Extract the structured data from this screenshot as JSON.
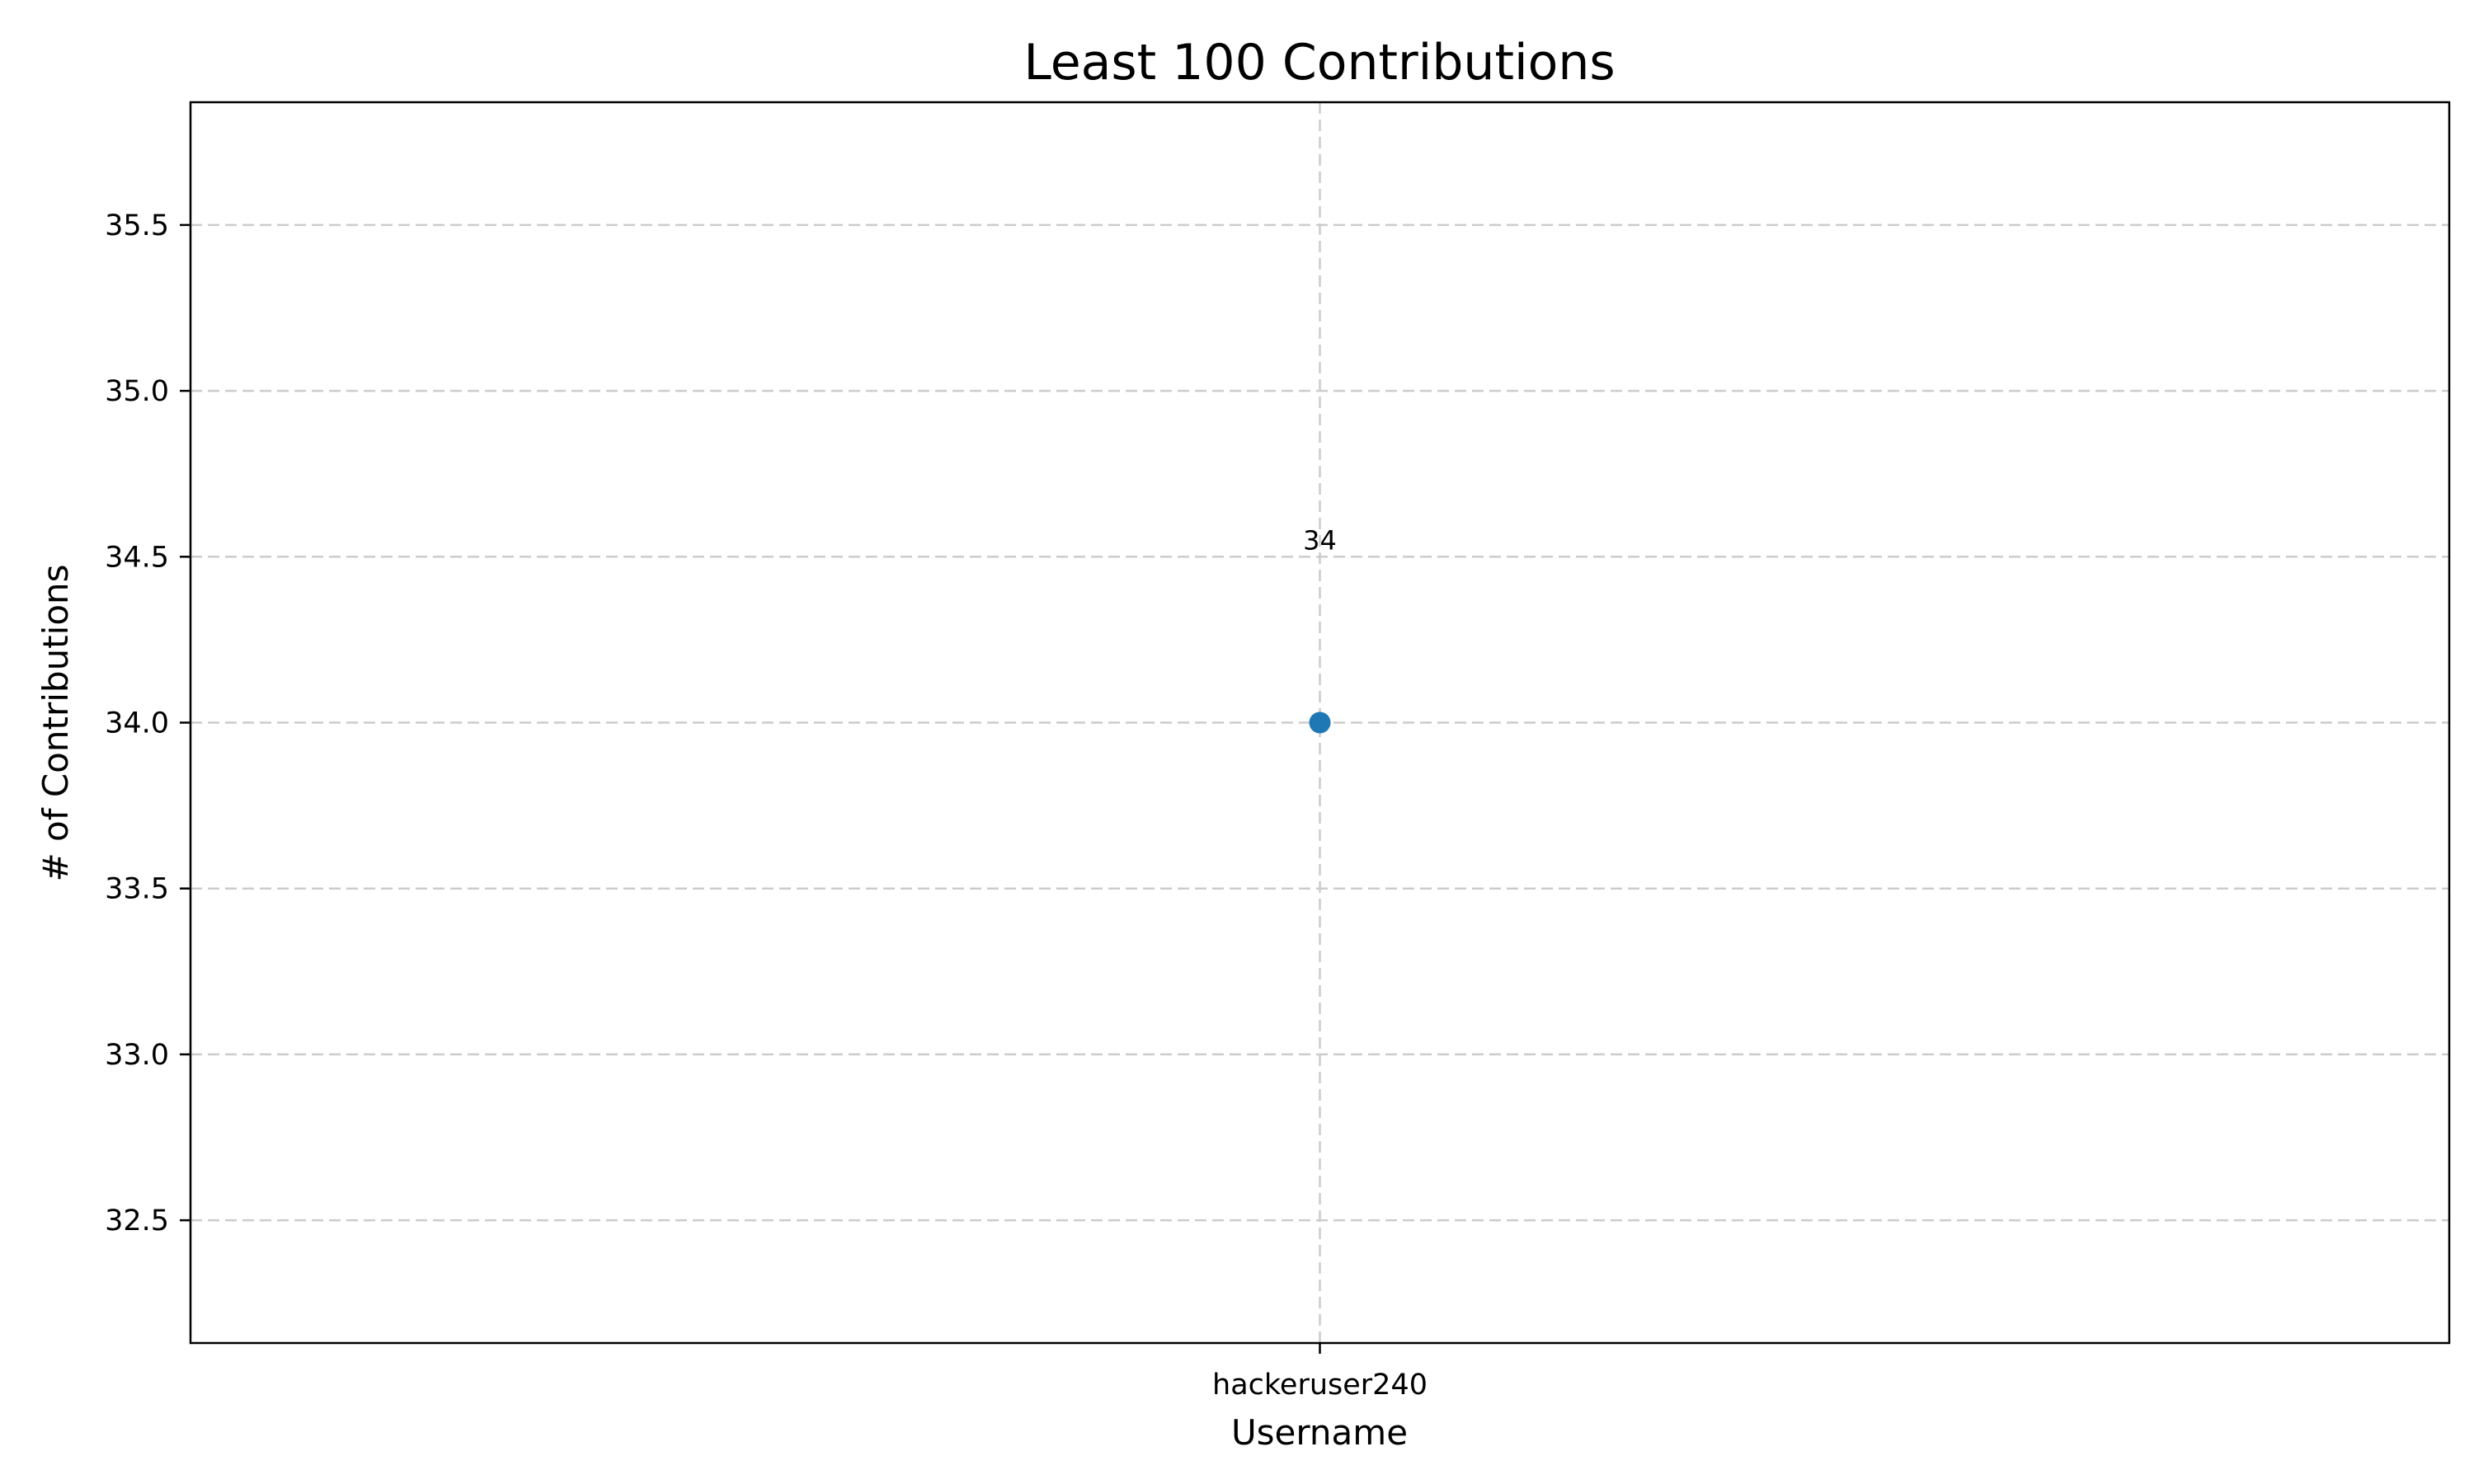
{
  "chart_data": {
    "type": "scatter",
    "title": "Least 100 Contributions",
    "xlabel": "Username",
    "ylabel": "# of Contributions",
    "categories": [
      "hackeruser240"
    ],
    "values": [
      34
    ],
    "data_labels": [
      "34"
    ],
    "ylim": [
      32.13,
      35.87
    ],
    "yticks": [
      32.5,
      33.0,
      33.5,
      34.0,
      34.5,
      35.0,
      35.5
    ],
    "ytick_labels": [
      "32.5",
      "33.0",
      "33.5",
      "34.0",
      "34.5",
      "35.0",
      "35.5"
    ],
    "grid": true,
    "legend": "none",
    "marker_color": "#1f77b4",
    "grid_color": "#cccccc"
  }
}
